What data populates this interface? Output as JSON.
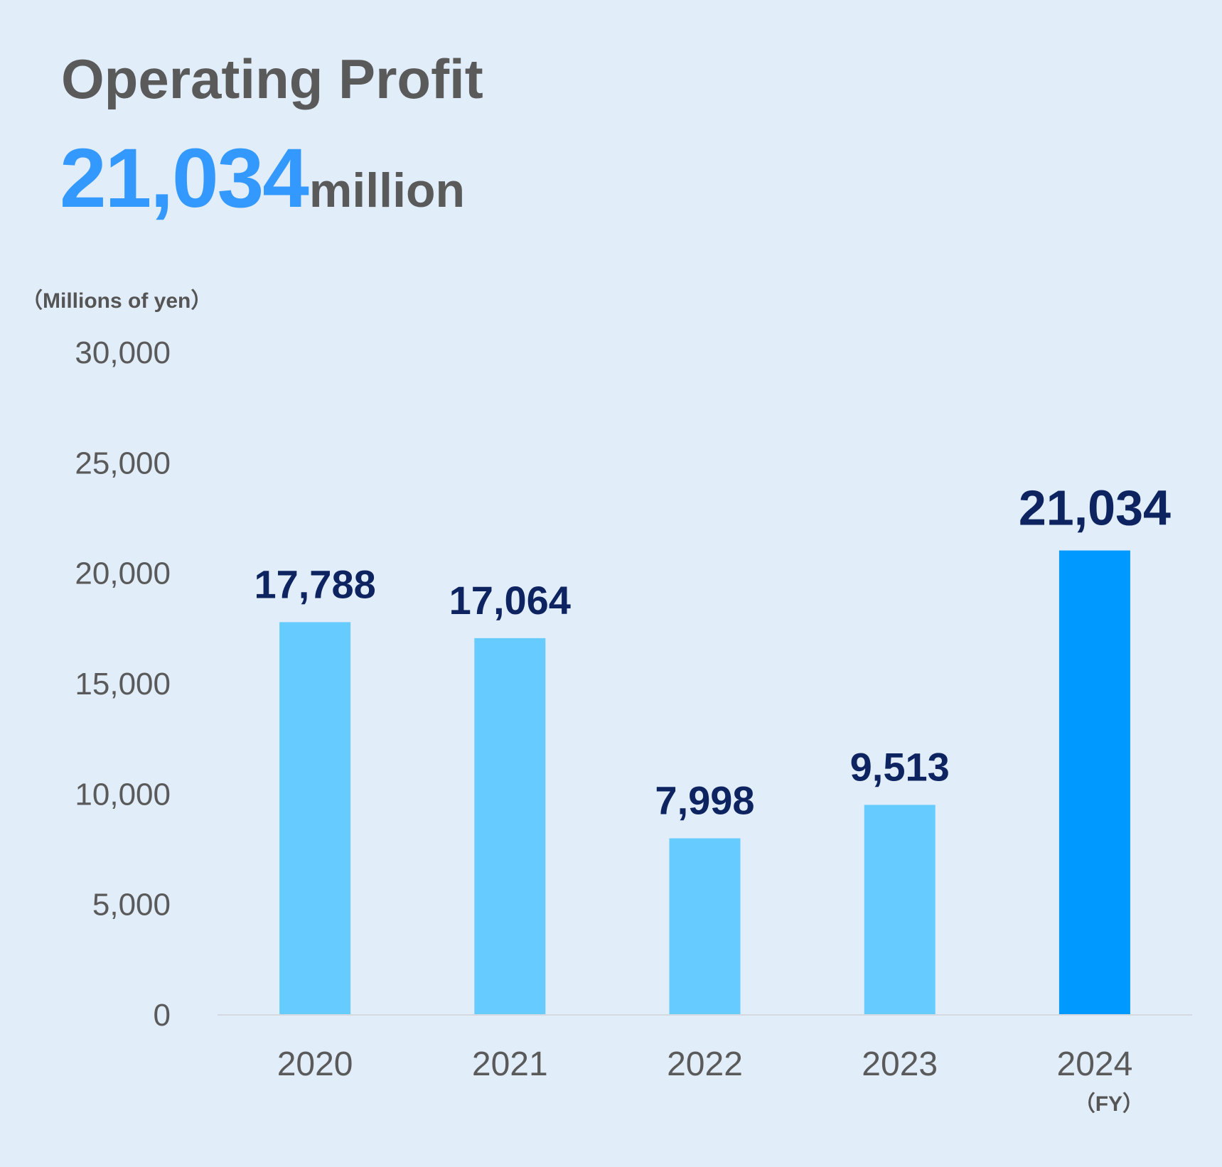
{
  "title": "Operating Profit",
  "headline": {
    "value": "21,034",
    "unit": "million"
  },
  "chart_data": {
    "type": "bar",
    "title": "Operating Profit",
    "ylabel": "（Millions of yen）",
    "xlabel": "（FY）",
    "categories": [
      "2020",
      "2021",
      "2022",
      "2023",
      "2024"
    ],
    "values": [
      17788,
      17064,
      7998,
      9513,
      21034
    ],
    "value_labels": [
      "17,788",
      "17,064",
      "7,998",
      "9,513",
      "21,034"
    ],
    "ylim": [
      0,
      30000
    ],
    "yticks": [
      0,
      5000,
      10000,
      15000,
      20000,
      25000,
      30000
    ],
    "ytick_labels": [
      "0",
      "5,000",
      "10,000",
      "15,000",
      "20,000",
      "25,000",
      "30,000"
    ],
    "grid": false,
    "legend": "none",
    "bar_color": "#66ccff",
    "highlight_color": "#0099ff",
    "highlight_index": 4,
    "label_color": "#0d2461"
  }
}
